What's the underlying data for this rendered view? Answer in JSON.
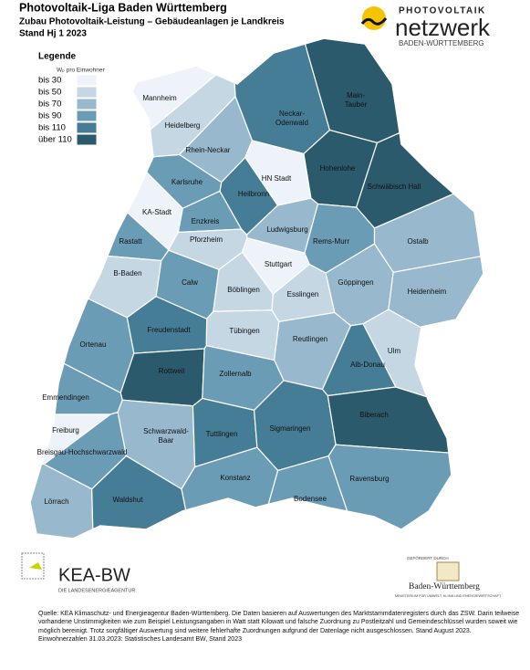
{
  "header": {
    "title": "Photovoltaik-Liga Baden Württemberg",
    "subtitle": "Zubau Photovoltaik-Leistung – Gebäudeanlagen je Landkreis",
    "date": "Stand Hj 1 2023"
  },
  "logo_top": {
    "line1": "PHOTOVOLTAIK",
    "line2": "netzwerk",
    "line3": "BADEN-WÜRTTEMBERG"
  },
  "legend": {
    "title": "Legende",
    "unit": "Wₚ pro Einwohner",
    "items": [
      {
        "label": "bis 30",
        "color": "#edf3f8"
      },
      {
        "label": "bis 50",
        "color": "#c4d7e3"
      },
      {
        "label": "bis 70",
        "color": "#98b9cd"
      },
      {
        "label": "bis 90",
        "color": "#6b9cb6"
      },
      {
        "label": "bis 110",
        "color": "#467d96"
      },
      {
        "label": "über 110",
        "color": "#2c5a6d"
      }
    ]
  },
  "regions": [
    {
      "label": "Mannheim",
      "color": "#edf3f8"
    },
    {
      "label": "Heidelberg",
      "color": "#c4d7e3"
    },
    {
      "label": "Rhein-Neckar",
      "color": "#98b9cd"
    },
    {
      "label": "Neckar-\nOdenwald",
      "color": "#467d96"
    },
    {
      "label": "Main-\nTauber",
      "color": "#2c5a6d"
    },
    {
      "label": "Hohenlohe",
      "color": "#2c5a6d"
    },
    {
      "label": "Schwäbisch Hall",
      "color": "#2c5a6d"
    },
    {
      "label": "HN Stadt",
      "color": "#edf3f8"
    },
    {
      "label": "Heilbronn",
      "color": "#467d96"
    },
    {
      "label": "Karlsruhe",
      "color": "#6b9cb6"
    },
    {
      "label": "KA-Stadt",
      "color": "#edf3f8"
    },
    {
      "label": "Enzkreis",
      "color": "#6b9cb6"
    },
    {
      "label": "Pforzheim",
      "color": "#c4d7e3"
    },
    {
      "label": "Ludwigsburg",
      "color": "#98b9cd"
    },
    {
      "label": "Rems-Murr",
      "color": "#6b9cb6"
    },
    {
      "label": "Ostalb",
      "color": "#98b9cd"
    },
    {
      "label": "Rastatt",
      "color": "#6b9cb6"
    },
    {
      "label": "Stuttgart",
      "color": "#edf3f8"
    },
    {
      "label": "B-Baden",
      "color": "#c4d7e3"
    },
    {
      "label": "Calw",
      "color": "#6b9cb6"
    },
    {
      "label": "Böblingen",
      "color": "#c4d7e3"
    },
    {
      "label": "Esslingen",
      "color": "#c4d7e3"
    },
    {
      "label": "Göppingen",
      "color": "#98b9cd"
    },
    {
      "label": "Heidenheim",
      "color": "#98b9cd"
    },
    {
      "label": "Freudenstadt",
      "color": "#467d96"
    },
    {
      "label": "Tübingen",
      "color": "#c4d7e3"
    },
    {
      "label": "Reutlingen",
      "color": "#98b9cd"
    },
    {
      "label": "Ortenau",
      "color": "#6b9cb6"
    },
    {
      "label": "Ulm",
      "color": "#c4d7e3"
    },
    {
      "label": "Alb-Donau",
      "color": "#467d96"
    },
    {
      "label": "Rottweil",
      "color": "#2c5a6d"
    },
    {
      "label": "Zollernalb",
      "color": "#6b9cb6"
    },
    {
      "label": "Emmendingen",
      "color": "#6b9cb6"
    },
    {
      "label": "Biberach",
      "color": "#2c5a6d"
    },
    {
      "label": "Freiburg",
      "color": "#edf3f8"
    },
    {
      "label": "Schwarzwald-\nBaar",
      "color": "#98b9cd"
    },
    {
      "label": "Tuttlingen",
      "color": "#467d96"
    },
    {
      "label": "Sigmaringen",
      "color": "#467d96"
    },
    {
      "label": "Breisgau-Hochschwarzwald",
      "color": "#6b9cb6"
    },
    {
      "label": "Konstanz",
      "color": "#6b9cb6"
    },
    {
      "label": "Ravensburg",
      "color": "#6b9cb6"
    },
    {
      "label": "Bodensee",
      "color": "#6b9cb6"
    },
    {
      "label": "Lörrach",
      "color": "#98b9cd"
    },
    {
      "label": "Waldshut",
      "color": "#467d96"
    }
  ],
  "logo_kea": {
    "name": "KEA-BW",
    "tagline": "DIE LANDESENERGIEAGENTUR"
  },
  "logo_ministry": {
    "funded": "GEFÖRDERT DURCH",
    "name": "Baden-Württemberg",
    "ministry": "MINISTERIUM FÜR UMWELT, KLIMA UND ENERGIEWIRTSCHAFT"
  },
  "footer": {
    "source": "Quelle: KEA Klimaschutz- und Energieagentur Baden-Württemberg. Die Daten basieren auf Auswertungen des Marktstammdatenregisters durch das ZSW. Darin teilweise vorhandene Unstimmigkeiten wie zum Beispiel Leistungsangaben in Watt statt Kilowatt und falsche Zuordnung zu Postleitzahl und Gemeindeschlüssel wurden soweit wie möglich bereinigt. Trotz sorgfältiger Auswertung sind weitere fehlerhafte Zuordnungen aufgrund der Datenlage nicht ausgeschlossen. Stand August 2023.",
    "population": "Einwohnerzahlen 31.03.2023: Statistisches Landesamt BW, Stand 2023"
  }
}
